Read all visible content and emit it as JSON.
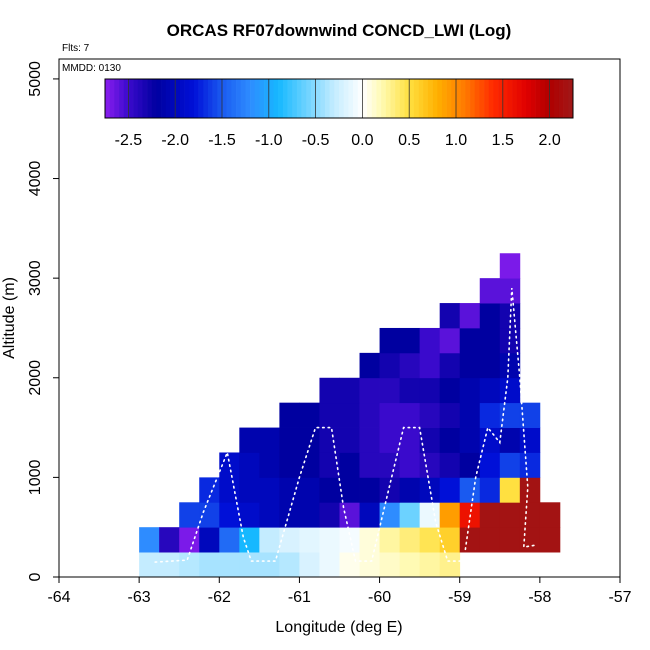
{
  "chart_data": {
    "type": "heatmap",
    "title": "ORCAS RF07downwind CONCD_LWI (Log)",
    "annotations": {
      "flights": "Flts: 7",
      "date": "MMDD: 0130"
    },
    "xlabel": "Longitude (deg E)",
    "ylabel": "Altitude (m)",
    "xlim": [
      -64,
      -57
    ],
    "ylim": [
      0,
      5200
    ],
    "xticks": [
      -64,
      -63,
      -62,
      -61,
      -60,
      -59,
      -58,
      -57
    ],
    "xtick_labels": [
      "-64",
      "-63",
      "-62",
      "-61",
      "-60",
      "-59",
      "-58",
      "-57"
    ],
    "yticks": [
      0,
      1000,
      2000,
      3000,
      4000,
      5000
    ],
    "ytick_labels": [
      "0",
      "1000",
      "2000",
      "3000",
      "4000",
      "5000"
    ],
    "colorbar": {
      "range": [
        -2.75,
        2.25
      ],
      "ticks": [
        -2.5,
        -2.0,
        -1.5,
        -1.0,
        -0.5,
        0.0,
        0.5,
        1.0,
        1.5,
        2.0
      ],
      "tick_labels": [
        "-2.5",
        "-2.0",
        "-1.5",
        "-1.0",
        "-0.5",
        "0.0",
        "0.5",
        "1.0",
        "1.5",
        "2.0"
      ],
      "stops": [
        [
          -2.75,
          "#8b1ef0"
        ],
        [
          -2.5,
          "#3a0acc"
        ],
        [
          -2.2,
          "#0000a0"
        ],
        [
          -1.8,
          "#0010d8"
        ],
        [
          -1.5,
          "#1a5af0"
        ],
        [
          -1.2,
          "#2e8cff"
        ],
        [
          -0.9,
          "#16b8ff"
        ],
        [
          -0.6,
          "#6cd2ff"
        ],
        [
          -0.3,
          "#c4ecff"
        ],
        [
          0.0,
          "#ffffff"
        ],
        [
          0.2,
          "#fffab4"
        ],
        [
          0.5,
          "#ffe040"
        ],
        [
          0.8,
          "#ffb000"
        ],
        [
          1.1,
          "#ff7800"
        ],
        [
          1.4,
          "#ff2a00"
        ],
        [
          1.75,
          "#e00000"
        ],
        [
          2.0,
          "#b00000"
        ],
        [
          2.25,
          "#a01818"
        ]
      ]
    },
    "grid": {
      "lon_step": 0.25,
      "alt_step": 250,
      "cells": [
        [
          -63.0,
          0,
          -0.3
        ],
        [
          -62.75,
          0,
          -0.3
        ],
        [
          -62.5,
          0,
          -0.35
        ],
        [
          -62.25,
          0,
          -0.4
        ],
        [
          -62.0,
          0,
          -0.4
        ],
        [
          -61.75,
          0,
          -0.4
        ],
        [
          -61.5,
          0,
          -0.4
        ],
        [
          -61.25,
          0,
          -0.35
        ],
        [
          -61.0,
          0,
          -0.2
        ],
        [
          -60.75,
          0,
          -0.1
        ],
        [
          -60.5,
          0,
          0.05
        ],
        [
          -60.25,
          0,
          0.1
        ],
        [
          -60.0,
          0,
          0.15
        ],
        [
          -59.75,
          0,
          0.2
        ],
        [
          -59.5,
          0,
          0.25
        ],
        [
          -59.25,
          0,
          0.3
        ],
        [
          -63.0,
          250,
          -1.2
        ],
        [
          -62.75,
          250,
          -2.4
        ],
        [
          -62.5,
          250,
          -2.7
        ],
        [
          -62.25,
          250,
          -2.0
        ],
        [
          -62.0,
          250,
          -1.4
        ],
        [
          -61.75,
          250,
          -0.9
        ],
        [
          -61.5,
          250,
          -0.3
        ],
        [
          -61.25,
          250,
          -0.2
        ],
        [
          -61.0,
          250,
          -0.15
        ],
        [
          -60.75,
          250,
          -0.1
        ],
        [
          -60.5,
          250,
          -0.05
        ],
        [
          -60.25,
          250,
          0.1
        ],
        [
          -60.0,
          250,
          0.25
        ],
        [
          -59.75,
          250,
          0.35
        ],
        [
          -59.5,
          250,
          0.45
        ],
        [
          -59.25,
          250,
          0.6
        ],
        [
          -59.0,
          250,
          2.2
        ],
        [
          -58.75,
          250,
          2.2
        ],
        [
          -58.5,
          250,
          2.2
        ],
        [
          -58.25,
          250,
          2.2
        ],
        [
          -58.0,
          250,
          2.2
        ],
        [
          -62.5,
          500,
          -1.6
        ],
        [
          -62.25,
          500,
          -1.6
        ],
        [
          -62.0,
          500,
          -1.8
        ],
        [
          -61.75,
          500,
          -1.9
        ],
        [
          -61.5,
          500,
          -2.0
        ],
        [
          -61.25,
          500,
          -2.1
        ],
        [
          -61.0,
          500,
          -2.1
        ],
        [
          -60.75,
          500,
          -2.3
        ],
        [
          -60.5,
          500,
          -2.6
        ],
        [
          -60.25,
          500,
          -2.0
        ],
        [
          -60.0,
          500,
          -1.2
        ],
        [
          -59.75,
          500,
          -0.6
        ],
        [
          -59.5,
          500,
          -0.1
        ],
        [
          -59.25,
          500,
          0.9
        ],
        [
          -59.0,
          500,
          1.6
        ],
        [
          -58.75,
          500,
          2.2
        ],
        [
          -58.5,
          500,
          2.2
        ],
        [
          -58.25,
          500,
          2.2
        ],
        [
          -58.0,
          500,
          2.2
        ],
        [
          -62.25,
          750,
          -1.7
        ],
        [
          -62.0,
          750,
          -1.9
        ],
        [
          -61.75,
          750,
          -2.0
        ],
        [
          -61.5,
          750,
          -2.0
        ],
        [
          -61.25,
          750,
          -2.1
        ],
        [
          -61.0,
          750,
          -2.1
        ],
        [
          -60.75,
          750,
          -2.2
        ],
        [
          -60.5,
          750,
          -2.2
        ],
        [
          -60.25,
          750,
          -2.2
        ],
        [
          -60.0,
          750,
          -2.3
        ],
        [
          -59.75,
          750,
          -2.1
        ],
        [
          -59.5,
          750,
          -2.0
        ],
        [
          -59.25,
          750,
          -1.8
        ],
        [
          -59.0,
          750,
          -1.5
        ],
        [
          -58.75,
          750,
          -1.7
        ],
        [
          -58.5,
          750,
          0.5
        ],
        [
          -58.25,
          750,
          2.2
        ],
        [
          -62.0,
          1000,
          -1.9
        ],
        [
          -61.75,
          1000,
          -2.0
        ],
        [
          -61.5,
          1000,
          -2.1
        ],
        [
          -61.25,
          1000,
          -2.2
        ],
        [
          -61.0,
          1000,
          -2.2
        ],
        [
          -60.75,
          1000,
          -2.3
        ],
        [
          -60.5,
          1000,
          -2.2
        ],
        [
          -60.25,
          1000,
          -2.4
        ],
        [
          -60.0,
          1000,
          -2.4
        ],
        [
          -59.75,
          1000,
          -2.5
        ],
        [
          -59.5,
          1000,
          -2.4
        ],
        [
          -59.25,
          1000,
          -2.3
        ],
        [
          -59.0,
          1000,
          -2.2
        ],
        [
          -58.75,
          1000,
          -1.8
        ],
        [
          -58.5,
          1000,
          -1.6
        ],
        [
          -58.25,
          1000,
          -1.7
        ],
        [
          -61.75,
          1250,
          -2.1
        ],
        [
          -61.5,
          1250,
          -2.1
        ],
        [
          -61.25,
          1250,
          -2.2
        ],
        [
          -61.0,
          1250,
          -2.2
        ],
        [
          -60.75,
          1250,
          -2.3
        ],
        [
          -60.5,
          1250,
          -2.3
        ],
        [
          -60.25,
          1250,
          -2.4
        ],
        [
          -60.0,
          1250,
          -2.5
        ],
        [
          -59.75,
          1250,
          -2.5
        ],
        [
          -59.5,
          1250,
          -2.3
        ],
        [
          -59.25,
          1250,
          -2.2
        ],
        [
          -59.0,
          1250,
          -2.1
        ],
        [
          -58.75,
          1250,
          -1.9
        ],
        [
          -58.5,
          1250,
          -2.1
        ],
        [
          -58.25,
          1250,
          -1.9
        ],
        [
          -61.25,
          1500,
          -2.2
        ],
        [
          -61.0,
          1500,
          -2.2
        ],
        [
          -60.75,
          1500,
          -2.3
        ],
        [
          -60.5,
          1500,
          -2.3
        ],
        [
          -60.25,
          1500,
          -2.4
        ],
        [
          -60.0,
          1500,
          -2.5
        ],
        [
          -59.75,
          1500,
          -2.5
        ],
        [
          -59.5,
          1500,
          -2.4
        ],
        [
          -59.25,
          1500,
          -2.3
        ],
        [
          -59.0,
          1500,
          -2.1
        ],
        [
          -58.75,
          1500,
          -1.7
        ],
        [
          -58.5,
          1500,
          -1.6
        ],
        [
          -58.25,
          1500,
          -1.6
        ],
        [
          -60.75,
          1750,
          -2.3
        ],
        [
          -60.5,
          1750,
          -2.3
        ],
        [
          -60.25,
          1750,
          -2.4
        ],
        [
          -60.0,
          1750,
          -2.4
        ],
        [
          -59.75,
          1750,
          -2.3
        ],
        [
          -59.5,
          1750,
          -2.3
        ],
        [
          -59.25,
          1750,
          -2.2
        ],
        [
          -59.0,
          1750,
          -2.1
        ],
        [
          -58.75,
          1750,
          -2.0
        ],
        [
          -58.5,
          1750,
          -1.9
        ],
        [
          -60.25,
          2000,
          -2.2
        ],
        [
          -60.0,
          2000,
          -2.3
        ],
        [
          -59.75,
          2000,
          -2.4
        ],
        [
          -59.5,
          2000,
          -2.5
        ],
        [
          -59.25,
          2000,
          -2.3
        ],
        [
          -59.0,
          2000,
          -2.2
        ],
        [
          -58.75,
          2000,
          -2.2
        ],
        [
          -58.5,
          2000,
          -2.1
        ],
        [
          -60.0,
          2250,
          -2.2
        ],
        [
          -59.75,
          2250,
          -2.2
        ],
        [
          -59.5,
          2250,
          -2.5
        ],
        [
          -59.25,
          2250,
          -2.6
        ],
        [
          -59.0,
          2250,
          -2.2
        ],
        [
          -58.75,
          2250,
          -2.2
        ],
        [
          -58.5,
          2250,
          -2.3
        ],
        [
          -59.25,
          2500,
          -2.3
        ],
        [
          -59.0,
          2500,
          -2.6
        ],
        [
          -58.75,
          2500,
          -2.2
        ],
        [
          -58.5,
          2500,
          -2.3
        ],
        [
          -58.75,
          2750,
          -2.6
        ],
        [
          -58.5,
          2750,
          -2.6
        ],
        [
          -58.5,
          3000,
          -2.7
        ]
      ]
    },
    "flight_track": {
      "style": "dotted white (solid at turns)",
      "points": [
        [
          -62.8,
          150
        ],
        [
          -62.4,
          170
        ],
        [
          -62.2,
          650
        ],
        [
          -61.9,
          1250
        ],
        [
          -61.7,
          400
        ],
        [
          -61.6,
          160
        ],
        [
          -61.3,
          160
        ],
        [
          -61.0,
          1000
        ],
        [
          -60.8,
          1500
        ],
        [
          -60.6,
          1500
        ],
        [
          -60.45,
          700
        ],
        [
          -60.3,
          160
        ],
        [
          -60.1,
          160
        ],
        [
          -59.85,
          1000
        ],
        [
          -59.7,
          1500
        ],
        [
          -59.5,
          1500
        ],
        [
          -59.3,
          550
        ],
        [
          -59.15,
          160
        ],
        [
          -58.95,
          160
        ],
        [
          -58.8,
          1000
        ],
        [
          -58.65,
          1500
        ],
        [
          -58.5,
          1350
        ],
        [
          -58.4,
          2000
        ],
        [
          -58.35,
          2900
        ],
        [
          -58.25,
          2000
        ],
        [
          -58.15,
          900
        ],
        [
          -58.2,
          300
        ],
        [
          -58.05,
          320
        ]
      ]
    }
  }
}
